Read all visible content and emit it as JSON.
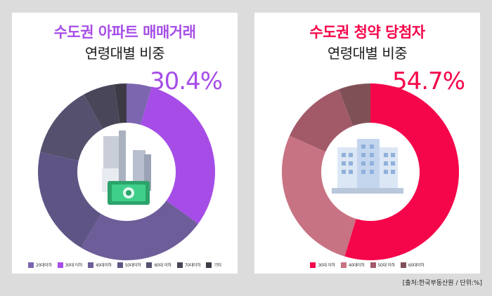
{
  "chart_data": [
    {
      "type": "donut",
      "title": "수도권 아파트 매매거래",
      "subtitle": "연령대별 비중",
      "highlight": "30.4%",
      "unit": "%",
      "categories": [
        "20대이하",
        "30대 이하",
        "40대이하",
        "50대이하",
        "60대 이하",
        "70대이하",
        "기타"
      ],
      "values": [
        4.6,
        30.4,
        23.6,
        20.0,
        13.4,
        5.8,
        2.2
      ],
      "colors": [
        "#7c66b0",
        "#a64de8",
        "#6d5d99",
        "#5f5585",
        "#55506e",
        "#4a4659",
        "#3d3a46"
      ],
      "legend_position": "bottom"
    },
    {
      "type": "donut",
      "title": "수도권 청약 당첨자",
      "subtitle": "연령대별 비중",
      "highlight": "54.7%",
      "unit": "%",
      "categories": [
        "30대 이하",
        "40대이하",
        "50대 이하",
        "60대이하"
      ],
      "values": [
        54.7,
        27.0,
        12.5,
        5.8
      ],
      "colors": [
        "#f5064a",
        "#c87383",
        "#a25a69",
        "#7f5157"
      ],
      "legend_position": "bottom"
    }
  ],
  "colors": {
    "left_accent": "#a64de8",
    "right_accent": "#f5064a"
  },
  "icons": {
    "left": "building-money-icon",
    "right": "apartment-icon"
  },
  "source": "[출처:한국부동산원 / 단위:%]"
}
